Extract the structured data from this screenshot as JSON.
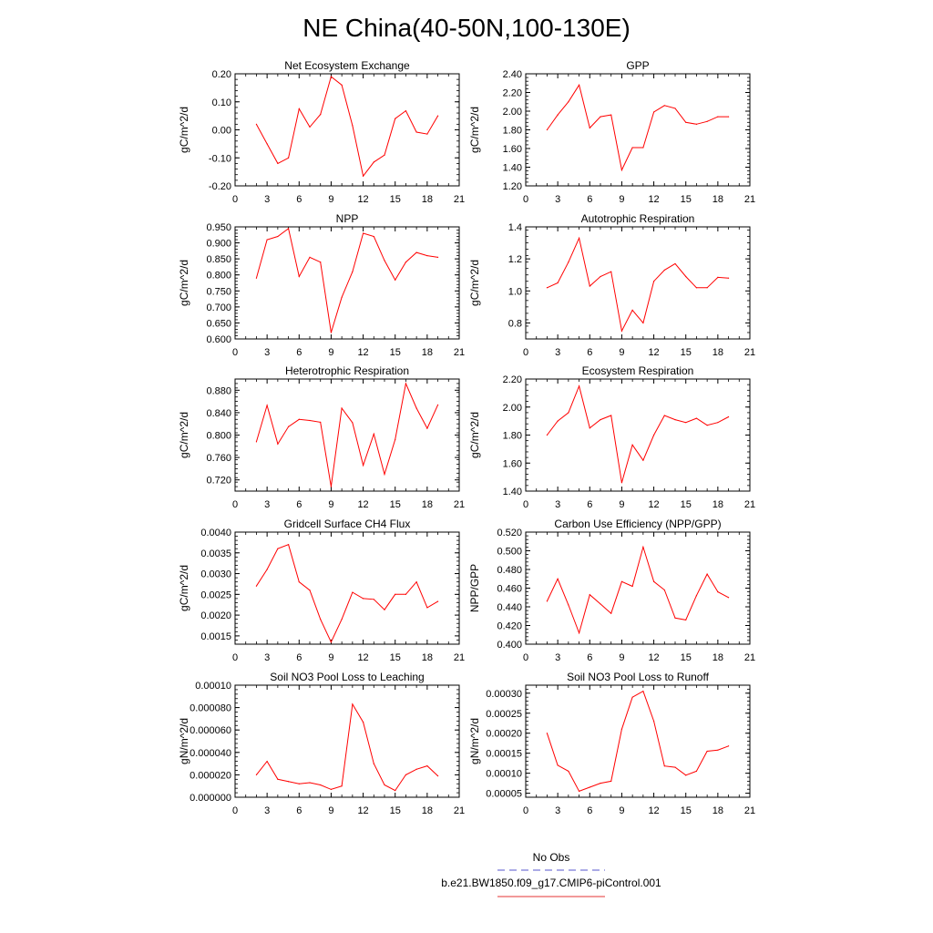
{
  "figure": {
    "title": "NE China(40-50N,100-130E)"
  },
  "legend": {
    "entries": [
      {
        "name": "No Obs",
        "color": "#5555cc",
        "dash": "dashed"
      },
      {
        "name": "b.e21.BW1850.f09_g17.CMIP6-piControl.001",
        "color": "#e63333",
        "dash": "solid"
      }
    ]
  },
  "chart_data": [
    {
      "type": "line",
      "title": "Net Ecosystem Exchange",
      "ylabel": "gC/m^2/d",
      "xlim": [
        0,
        21
      ],
      "ylim": [
        -0.2,
        0.2
      ],
      "xticks": [
        0,
        3,
        6,
        9,
        12,
        15,
        18,
        21
      ],
      "yticks": [
        -0.2,
        -0.1,
        0.0,
        0.1,
        0.2
      ],
      "ytick_labels": [
        "-0.20",
        "-0.10",
        "0.00",
        "0.10",
        "0.20"
      ],
      "grid": false,
      "series": [
        {
          "color": "#ff0000",
          "x": [
            2,
            3,
            4,
            5,
            6,
            7,
            8,
            9,
            10,
            11,
            12,
            13,
            14,
            15,
            16,
            17,
            18,
            19
          ],
          "y": [
            0.02,
            -0.05,
            -0.12,
            -0.1,
            0.075,
            0.01,
            0.055,
            0.19,
            0.16,
            0.015,
            -0.165,
            -0.115,
            -0.09,
            0.04,
            0.068,
            -0.008,
            -0.015,
            0.05
          ]
        }
      ]
    },
    {
      "type": "line",
      "title": "GPP",
      "ylabel": "gC/m^2/d",
      "xlim": [
        0,
        21
      ],
      "ylim": [
        1.2,
        2.4
      ],
      "xticks": [
        0,
        3,
        6,
        9,
        12,
        15,
        18,
        21
      ],
      "yticks": [
        1.2,
        1.4,
        1.6,
        1.8,
        2.0,
        2.2,
        2.4
      ],
      "ytick_labels": [
        "1.20",
        "1.40",
        "1.60",
        "1.80",
        "2.00",
        "2.20",
        "2.40"
      ],
      "grid": false,
      "series": [
        {
          "color": "#ff0000",
          "x": [
            2,
            3,
            4,
            5,
            6,
            7,
            8,
            9,
            10,
            11,
            12,
            13,
            14,
            15,
            16,
            17,
            18,
            19
          ],
          "y": [
            1.8,
            1.96,
            2.1,
            2.28,
            1.82,
            1.94,
            1.96,
            1.37,
            1.61,
            1.61,
            1.99,
            2.06,
            2.03,
            1.88,
            1.86,
            1.89,
            1.94,
            1.94
          ]
        }
      ]
    },
    {
      "type": "line",
      "title": "NPP",
      "ylabel": "gC/m^2/d",
      "xlim": [
        0,
        21
      ],
      "ylim": [
        0.6,
        0.95
      ],
      "xticks": [
        0,
        3,
        6,
        9,
        12,
        15,
        18,
        21
      ],
      "yticks": [
        0.6,
        0.65,
        0.7,
        0.75,
        0.8,
        0.85,
        0.9,
        0.95
      ],
      "ytick_labels": [
        "0.600",
        "0.650",
        "0.700",
        "0.750",
        "0.800",
        "0.850",
        "0.900",
        "0.950"
      ],
      "grid": false,
      "series": [
        {
          "color": "#ff0000",
          "x": [
            2,
            3,
            4,
            5,
            6,
            7,
            8,
            9,
            10,
            11,
            12,
            13,
            14,
            15,
            16,
            17,
            18,
            19
          ],
          "y": [
            0.79,
            0.91,
            0.92,
            0.945,
            0.795,
            0.855,
            0.84,
            0.62,
            0.73,
            0.81,
            0.93,
            0.92,
            0.845,
            0.784,
            0.84,
            0.87,
            0.86,
            0.855
          ]
        }
      ]
    },
    {
      "type": "line",
      "title": "Autotrophic Respiration",
      "ylabel": "gC/m^2/d",
      "xlim": [
        0,
        21
      ],
      "ylim": [
        0.7,
        1.4
      ],
      "xticks": [
        0,
        3,
        6,
        9,
        12,
        15,
        18,
        21
      ],
      "yticks": [
        0.8,
        1.0,
        1.2,
        1.4
      ],
      "ytick_labels": [
        "0.8",
        "1.0",
        "1.2",
        "1.4"
      ],
      "grid": false,
      "series": [
        {
          "color": "#ff0000",
          "x": [
            2,
            3,
            4,
            5,
            6,
            7,
            8,
            9,
            10,
            11,
            12,
            13,
            14,
            15,
            16,
            17,
            18,
            19
          ],
          "y": [
            1.02,
            1.05,
            1.18,
            1.33,
            1.03,
            1.09,
            1.12,
            0.75,
            0.88,
            0.8,
            1.06,
            1.13,
            1.17,
            1.09,
            1.02,
            1.02,
            1.085,
            1.08
          ]
        }
      ]
    },
    {
      "type": "line",
      "title": "Heterotrophic Respiration",
      "ylabel": "gC/m^2/d",
      "xlim": [
        0,
        21
      ],
      "ylim": [
        0.7,
        0.9
      ],
      "xticks": [
        0,
        3,
        6,
        9,
        12,
        15,
        18,
        21
      ],
      "yticks": [
        0.72,
        0.76,
        0.8,
        0.84,
        0.88
      ],
      "ytick_labels": [
        "0.720",
        "0.760",
        "0.800",
        "0.840",
        "0.880"
      ],
      "grid": false,
      "series": [
        {
          "color": "#ff0000",
          "x": [
            2,
            3,
            4,
            5,
            6,
            7,
            8,
            9,
            10,
            11,
            12,
            13,
            14,
            15,
            16,
            17,
            18,
            19
          ],
          "y": [
            0.788,
            0.853,
            0.784,
            0.815,
            0.828,
            0.826,
            0.823,
            0.708,
            0.848,
            0.822,
            0.746,
            0.802,
            0.73,
            0.792,
            0.892,
            0.848,
            0.812,
            0.854
          ]
        }
      ]
    },
    {
      "type": "line",
      "title": "Ecosystem Respiration",
      "ylabel": "gC/m^2/d",
      "xlim": [
        0,
        21
      ],
      "ylim": [
        1.4,
        2.2
      ],
      "xticks": [
        0,
        3,
        6,
        9,
        12,
        15,
        18,
        21
      ],
      "yticks": [
        1.4,
        1.6,
        1.8,
        2.0,
        2.2
      ],
      "ytick_labels": [
        "1.40",
        "1.60",
        "1.80",
        "2.00",
        "2.20"
      ],
      "grid": false,
      "series": [
        {
          "color": "#ff0000",
          "x": [
            2,
            3,
            4,
            5,
            6,
            7,
            8,
            9,
            10,
            11,
            12,
            13,
            14,
            15,
            16,
            17,
            18,
            19
          ],
          "y": [
            1.8,
            1.9,
            1.96,
            2.15,
            1.85,
            1.91,
            1.94,
            1.46,
            1.73,
            1.62,
            1.8,
            1.94,
            1.91,
            1.89,
            1.92,
            1.87,
            1.89,
            1.93
          ]
        }
      ]
    },
    {
      "type": "line",
      "title": "Gridcell Surface CH4 Flux",
      "ylabel": "gC/m^2/d",
      "xlim": [
        0,
        21
      ],
      "ylim": [
        0.0013,
        0.004
      ],
      "xticks": [
        0,
        3,
        6,
        9,
        12,
        15,
        18,
        21
      ],
      "yticks": [
        0.0015,
        0.002,
        0.0025,
        0.003,
        0.0035,
        0.004
      ],
      "ytick_labels": [
        "0.0015",
        "0.0020",
        "0.0025",
        "0.0030",
        "0.0035",
        "0.0040"
      ],
      "grid": false,
      "series": [
        {
          "color": "#ff0000",
          "x": [
            2,
            3,
            4,
            5,
            6,
            7,
            8,
            9,
            10,
            11,
            12,
            13,
            14,
            15,
            16,
            17,
            18,
            19
          ],
          "y": [
            0.0027,
            0.0031,
            0.0036,
            0.0037,
            0.0028,
            0.0026,
            0.0019,
            0.00135,
            0.0019,
            0.00255,
            0.0024,
            0.00238,
            0.00213,
            0.0025,
            0.0025,
            0.0028,
            0.00218,
            0.00233
          ]
        }
      ]
    },
    {
      "type": "line",
      "title": "Carbon Use Efficiency (NPP/GPP)",
      "ylabel": "NPP/GPP",
      "xlim": [
        0,
        21
      ],
      "ylim": [
        0.4,
        0.52
      ],
      "xticks": [
        0,
        3,
        6,
        9,
        12,
        15,
        18,
        21
      ],
      "yticks": [
        0.4,
        0.42,
        0.44,
        0.46,
        0.48,
        0.5,
        0.52
      ],
      "ytick_labels": [
        "0.400",
        "0.420",
        "0.440",
        "0.460",
        "0.480",
        "0.500",
        "0.520"
      ],
      "grid": false,
      "series": [
        {
          "color": "#ff0000",
          "x": [
            2,
            3,
            4,
            5,
            6,
            7,
            8,
            9,
            10,
            11,
            12,
            13,
            14,
            15,
            16,
            17,
            18,
            19
          ],
          "y": [
            0.446,
            0.47,
            0.442,
            0.412,
            0.453,
            0.443,
            0.433,
            0.467,
            0.462,
            0.504,
            0.467,
            0.458,
            0.428,
            0.426,
            0.452,
            0.475,
            0.456,
            0.45
          ]
        }
      ]
    },
    {
      "type": "line",
      "title": "Soil NO3 Pool Loss to Leaching",
      "ylabel": "gN/m^2/d",
      "xlim": [
        0,
        21
      ],
      "ylim": [
        0,
        0.0001
      ],
      "xticks": [
        0,
        3,
        6,
        9,
        12,
        15,
        18,
        21
      ],
      "yticks": [
        0,
        2e-05,
        4e-05,
        6e-05,
        8e-05,
        0.0001
      ],
      "ytick_labels": [
        "0.000000",
        "0.000020",
        "0.000040",
        "0.000060",
        "0.000080",
        "0.00010"
      ],
      "grid": false,
      "series": [
        {
          "color": "#ff0000",
          "x": [
            2,
            3,
            4,
            5,
            6,
            7,
            8,
            9,
            10,
            11,
            12,
            13,
            14,
            15,
            16,
            17,
            18,
            19
          ],
          "y": [
            2e-05,
            3.2e-05,
            1.6e-05,
            1.4e-05,
            1.2e-05,
            1.3e-05,
            1.1e-05,
            7e-06,
            1e-05,
            8.3e-05,
            6.7e-05,
            3e-05,
            1.1e-05,
            6e-06,
            2e-05,
            2.5e-05,
            2.8e-05,
            1.9e-05
          ]
        }
      ]
    },
    {
      "type": "line",
      "title": "Soil NO3 Pool Loss to Runoff",
      "ylabel": "gN/m^2/d",
      "xlim": [
        0,
        21
      ],
      "ylim": [
        4e-05,
        0.00032
      ],
      "xticks": [
        0,
        3,
        6,
        9,
        12,
        15,
        18,
        21
      ],
      "yticks": [
        5e-05,
        0.0001,
        0.00015,
        0.0002,
        0.00025,
        0.0003
      ],
      "ytick_labels": [
        "0.00005",
        "0.00010",
        "0.00015",
        "0.00020",
        "0.00025",
        "0.00030"
      ],
      "grid": false,
      "series": [
        {
          "color": "#ff0000",
          "x": [
            2,
            3,
            4,
            5,
            6,
            7,
            8,
            9,
            10,
            11,
            12,
            13,
            14,
            15,
            16,
            17,
            18,
            19
          ],
          "y": [
            0.0002,
            0.00012,
            0.000105,
            5.5e-05,
            6.5e-05,
            7.5e-05,
            8e-05,
            0.00021,
            0.00029,
            0.000305,
            0.00023,
            0.000118,
            0.000115,
            9.5e-05,
            0.000105,
            0.000155,
            0.000158,
            0.000168
          ]
        }
      ]
    }
  ]
}
